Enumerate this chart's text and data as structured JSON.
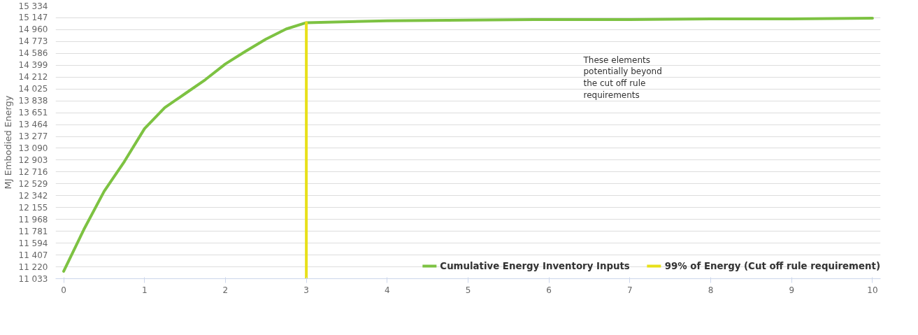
{
  "chart_data": {
    "type": "line",
    "ylabel": "MJ Embodied Energy",
    "xlim": [
      -0.1,
      10.1
    ],
    "xticks": [
      0,
      1,
      2,
      3,
      4,
      5,
      6,
      7,
      8,
      9,
      10
    ],
    "ylim": [
      11033,
      15334
    ],
    "yticks": [
      {
        "value": 11033,
        "label": "11 033"
      },
      {
        "value": 11220,
        "label": "11 220"
      },
      {
        "value": 11407,
        "label": "11 407"
      },
      {
        "value": 11594,
        "label": "11 594"
      },
      {
        "value": 11781,
        "label": "11 781"
      },
      {
        "value": 11968,
        "label": "11 968"
      },
      {
        "value": 12155,
        "label": "12 155"
      },
      {
        "value": 12342,
        "label": "12 342"
      },
      {
        "value": 12529,
        "label": "12 529"
      },
      {
        "value": 12716,
        "label": "12 716"
      },
      {
        "value": 12903,
        "label": "12 903"
      },
      {
        "value": 13090,
        "label": "13 090"
      },
      {
        "value": 13277,
        "label": "13 277"
      },
      {
        "value": 13464,
        "label": "13 464"
      },
      {
        "value": 13651,
        "label": "13 651"
      },
      {
        "value": 13838,
        "label": "13 838"
      },
      {
        "value": 14025,
        "label": "14 025"
      },
      {
        "value": 14212,
        "label": "14 212"
      },
      {
        "value": 14399,
        "label": "14 399"
      },
      {
        "value": 14586,
        "label": "14 586"
      },
      {
        "value": 14773,
        "label": "14 773"
      },
      {
        "value": 14960,
        "label": "14 960"
      },
      {
        "value": 15147,
        "label": "15 147"
      },
      {
        "value": 15334,
        "label": "15 334"
      }
    ],
    "x": [
      0,
      0.25,
      0.5,
      0.75,
      1,
      1.25,
      1.5,
      1.75,
      2,
      2.25,
      2.5,
      2.75,
      3,
      4,
      5,
      6,
      7,
      8,
      9,
      10
    ],
    "series": [
      {
        "name": "Cumulative Energy Inventory Inputs",
        "color": "#7dc242",
        "values": [
          11150,
          11810,
          12410,
          12880,
          13400,
          13730,
          13950,
          14170,
          14420,
          14620,
          14810,
          14970,
          15070,
          15100,
          15110,
          15120,
          15120,
          15130,
          15130,
          15140
        ]
      },
      {
        "name": "99% of Energy (Cut off rule requirement)",
        "color": "#e8e01a",
        "x": [
          3,
          3
        ],
        "values": [
          11033,
          15070
        ]
      }
    ],
    "annotations": [
      "These elements potentially beyond the cut off rule requirements"
    ],
    "grid": "y",
    "legend": "bottom",
    "line_style": "solid",
    "marker": "none"
  }
}
